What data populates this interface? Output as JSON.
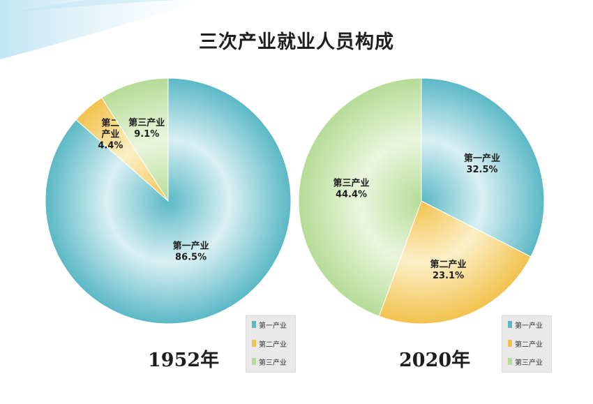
{
  "page": {
    "title": "三次产业就业人员构成"
  },
  "chart_data": [
    {
      "type": "pie",
      "label": "1952年",
      "categories": [
        "第一产业",
        "第二产业",
        "第三产业"
      ],
      "values": [
        86.5,
        4.4,
        9.1
      ],
      "value_labels": [
        "86.5%",
        "4.4%",
        "9.1%"
      ],
      "slice_names": [
        "第一产业",
        "第二\n产业",
        "第三产业"
      ],
      "legend": [
        "第一产业",
        "第二产业",
        "第三产业"
      ],
      "legend_placement": "bottom-right",
      "colors": [
        "#5bb8c6",
        "#f2c24e",
        "#b5dc96"
      ]
    },
    {
      "type": "pie",
      "label": "2020年",
      "categories": [
        "第一产业",
        "第二产业",
        "第三产业"
      ],
      "values": [
        32.5,
        23.1,
        44.4
      ],
      "value_labels": [
        "32.5%",
        "23.1%",
        "44.4%"
      ],
      "slice_names": [
        "第一产业",
        "第二产业",
        "第三产业"
      ],
      "legend": [
        "第一产业",
        "第二产业",
        "第三产业"
      ],
      "legend_placement": "bottom-right",
      "colors": [
        "#5bb8c6",
        "#f2c24e",
        "#b5dc96"
      ]
    }
  ]
}
